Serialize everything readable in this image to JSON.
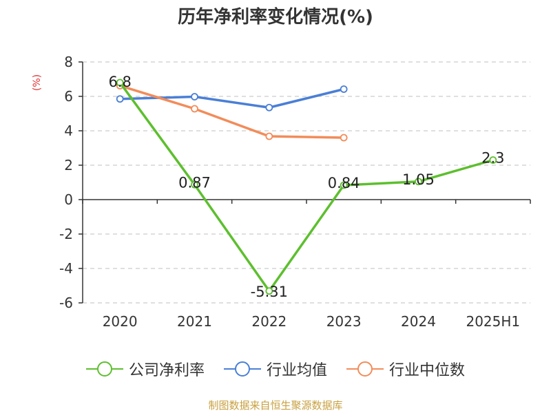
{
  "chart_data": {
    "type": "line",
    "title": "历年净利率变化情况(%)",
    "ylabel": "(%)",
    "categories": [
      "2020",
      "2021",
      "2022",
      "2023",
      "2024",
      "2025H1"
    ],
    "ylim": [
      -6,
      8
    ],
    "yticks": [
      8,
      6,
      4,
      2,
      0,
      -2,
      -4,
      -6
    ],
    "grid": true,
    "legend_position": "bottom",
    "series": [
      {
        "name": "公司净利率",
        "color": "#5dbf2e",
        "values": [
          6.8,
          0.87,
          -5.31,
          0.84,
          1.05,
          2.3
        ],
        "labels": [
          "6.8",
          "0.87",
          "-5.31",
          "0.84",
          "1.05",
          "2.3"
        ]
      },
      {
        "name": "行业均值",
        "color": "#4a7fd6",
        "values": [
          5.85,
          5.98,
          5.35,
          6.42,
          null,
          null
        ]
      },
      {
        "name": "行业中位数",
        "color": "#f28c5a",
        "values": [
          6.62,
          5.28,
          3.68,
          3.6,
          null,
          null
        ]
      }
    ]
  },
  "source": "制图数据来自恒生聚源数据库"
}
